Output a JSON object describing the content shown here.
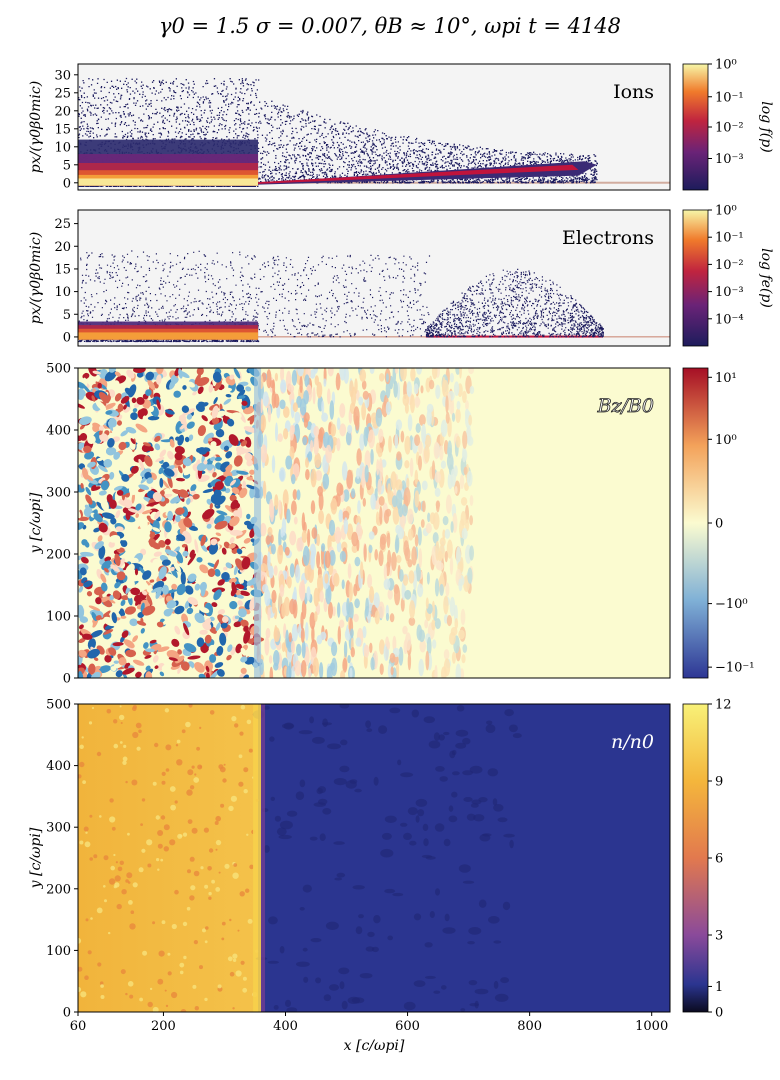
{
  "figure": {
    "title": "γ0 = 1.5     σ = 0.007,     θB ≈ 10°,     ωpi t = 4148"
  },
  "colors": {
    "panel_bg": "#f4f4f4",
    "inferno_dark": "#1c1b5e",
    "shock_red": "#c0143c",
    "downstream_yellow": "#f0b63a",
    "upstream_blue": "#2b3590",
    "rdbu_red": "#b2182b",
    "rdbu_blue": "#2166ac",
    "rdbu_mid": "#fbfbd0"
  },
  "chart_data": [
    {
      "type": "heatmap",
      "title": "Ions",
      "ylabel": "px/(γ0β0mic)",
      "ylim": [
        -2,
        33
      ],
      "yticks": [
        "0",
        "5",
        "10",
        "15",
        "20",
        "25",
        "30"
      ],
      "xlim": [
        60,
        1030
      ],
      "colorbar": {
        "label": "log f(p)",
        "ticks": [
          "10⁰",
          "10⁻¹",
          "10⁻²",
          "10⁻³"
        ]
      },
      "shock_x": 355,
      "downstream_spread": 20,
      "precursor_end_x": 910,
      "precursor_peak_px": 6
    },
    {
      "type": "heatmap",
      "title": "Electrons",
      "ylabel": "px/(γ0β0mic)",
      "ylim": [
        -2,
        28
      ],
      "yticks": [
        "0",
        "5",
        "10",
        "15",
        "20",
        "25"
      ],
      "xlim": [
        60,
        1030
      ],
      "colorbar": {
        "label": "log fe(p)",
        "ticks": [
          "10⁰",
          "10⁻¹",
          "10⁻²",
          "10⁻³",
          "10⁻⁴"
        ]
      },
      "shock_x": 355,
      "precursor_end_x": 920
    },
    {
      "type": "heatmap",
      "title": "Bz/B0",
      "ylabel": "y [c/ωpi]",
      "ylim": [
        0,
        500
      ],
      "yticks": [
        "0",
        "100",
        "200",
        "300",
        "400",
        "500"
      ],
      "xlim": [
        60,
        1030
      ],
      "colorbar": {
        "label": "",
        "ticks": [
          "10¹",
          "10⁰",
          "0",
          "−10⁰",
          "−10⁻¹"
        ]
      },
      "shock_x": 355,
      "turbulence_end_x": 640
    },
    {
      "type": "heatmap",
      "title": "n/n0",
      "ylabel": "y [c/ωpi]",
      "xlabel": "x [c/ωpi]",
      "ylim": [
        0,
        500
      ],
      "yticks": [
        "0",
        "100",
        "200",
        "300",
        "400",
        "500"
      ],
      "xticks": [
        "60",
        "200",
        "400",
        "600",
        "800",
        "1000"
      ],
      "xlim": [
        60,
        1030
      ],
      "colorbar": {
        "label": "",
        "ticks": [
          "12",
          "9",
          "6",
          "3",
          "1",
          "0"
        ]
      },
      "shock_x": 355,
      "downstream_value": 9,
      "upstream_value": 1
    }
  ]
}
